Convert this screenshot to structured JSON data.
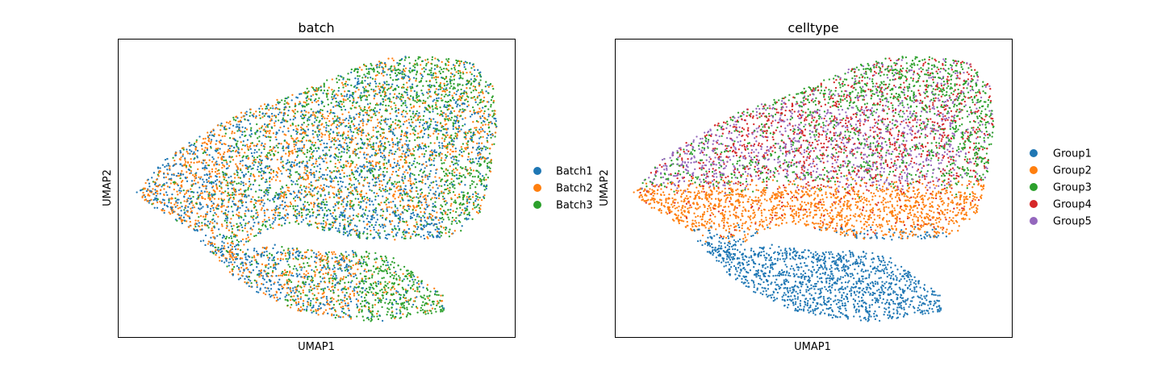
{
  "colors": {
    "blue": "#1f77b4",
    "orange": "#ff7f0e",
    "green": "#2ca02c",
    "red": "#d62728",
    "purple": "#9467bd",
    "frame": "#000000"
  },
  "chart_data": [
    {
      "type": "scatter",
      "title": "batch",
      "xlabel": "UMAP1",
      "ylabel": "UMAP2",
      "ticks": false,
      "grid": false,
      "legend_placement": "right",
      "series": [
        {
          "name": "Batch1",
          "color": "#1f77b4"
        },
        {
          "name": "Batch2",
          "color": "#ff7f0e"
        },
        {
          "name": "Batch3",
          "color": "#2ca02c"
        }
      ]
    },
    {
      "type": "scatter",
      "title": "celltype",
      "xlabel": "UMAP1",
      "ylabel": "UMAP2",
      "ticks": false,
      "grid": false,
      "legend_placement": "right",
      "series": [
        {
          "name": "Group1",
          "color": "#1f77b4"
        },
        {
          "name": "Group2",
          "color": "#ff7f0e"
        },
        {
          "name": "Group3",
          "color": "#2ca02c"
        },
        {
          "name": "Group4",
          "color": "#d62728"
        },
        {
          "name": "Group5",
          "color": "#9467bd"
        }
      ]
    }
  ]
}
